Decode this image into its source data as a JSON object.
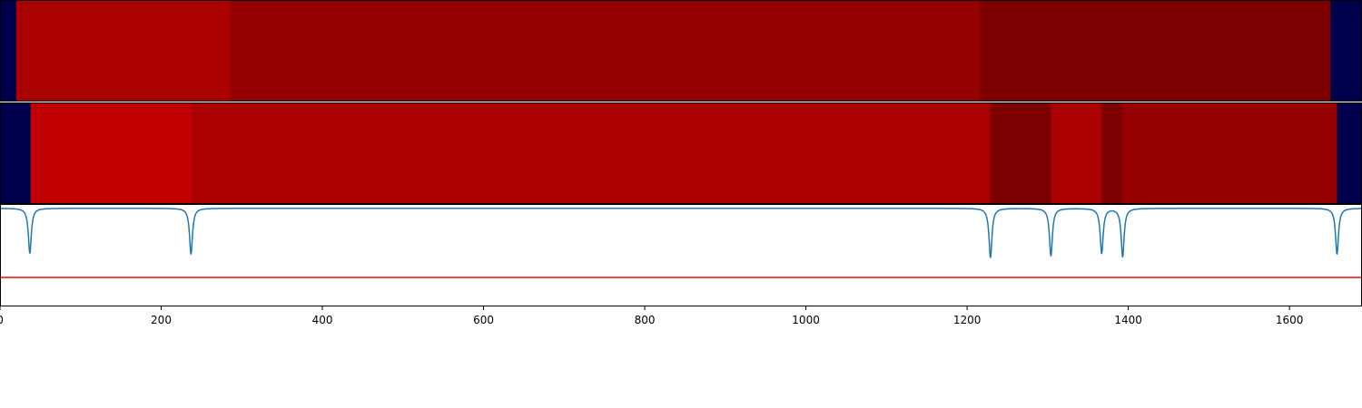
{
  "chart_data": [
    {
      "type": "heatmap",
      "panel": "segmentation-top",
      "xlim": [
        0,
        1690
      ],
      "segments": [
        {
          "start": 0,
          "end": 20,
          "color": "#00004c"
        },
        {
          "start": 20,
          "end": 285,
          "color": "#aa0000"
        },
        {
          "start": 285,
          "end": 1216,
          "color": "#950000"
        },
        {
          "start": 1216,
          "end": 1651,
          "color": "#7d0000"
        },
        {
          "start": 1651,
          "end": 1690,
          "color": "#00004c"
        }
      ]
    },
    {
      "type": "heatmap",
      "panel": "segmentation-bottom",
      "xlim": [
        0,
        1690
      ],
      "segments": [
        {
          "start": 0,
          "end": 38,
          "color": "#00004c"
        },
        {
          "start": 38,
          "end": 237,
          "color": "#c10000"
        },
        {
          "start": 237,
          "end": 1229,
          "color": "#aa0000"
        },
        {
          "start": 1229,
          "end": 1304,
          "color": "#7d0000"
        },
        {
          "start": 1304,
          "end": 1367,
          "color": "#aa0000"
        },
        {
          "start": 1367,
          "end": 1393,
          "color": "#7d0000"
        },
        {
          "start": 1393,
          "end": 1659,
          "color": "#950000"
        },
        {
          "start": 1659,
          "end": 1690,
          "color": "#00004c"
        }
      ]
    },
    {
      "type": "line",
      "panel": "boundary-score",
      "xlim": [
        0,
        1690
      ],
      "ylim": [
        -1.15,
        0.05
      ],
      "xticks": [
        0,
        200,
        400,
        600,
        800,
        1000,
        1200,
        1400,
        1600
      ],
      "xtick_labels": [
        "0",
        "200",
        "400",
        "600",
        "800",
        "1000",
        "1200",
        "1400",
        "1600"
      ],
      "grid": false,
      "series": [
        {
          "color": "#1f77b4",
          "baseline": 0.0,
          "dips": [
            {
              "x": 37,
              "depth": -0.53
            },
            {
              "x": 237,
              "depth": -0.54
            },
            {
              "x": 1229,
              "depth": -0.58
            },
            {
              "x": 1304,
              "depth": -0.56
            },
            {
              "x": 1367,
              "depth": -0.53
            },
            {
              "x": 1393,
              "depth": -0.57
            },
            {
              "x": 1659,
              "depth": -0.54
            }
          ]
        }
      ],
      "threshold": {
        "y": -0.81,
        "color": "#ff0000"
      }
    }
  ]
}
